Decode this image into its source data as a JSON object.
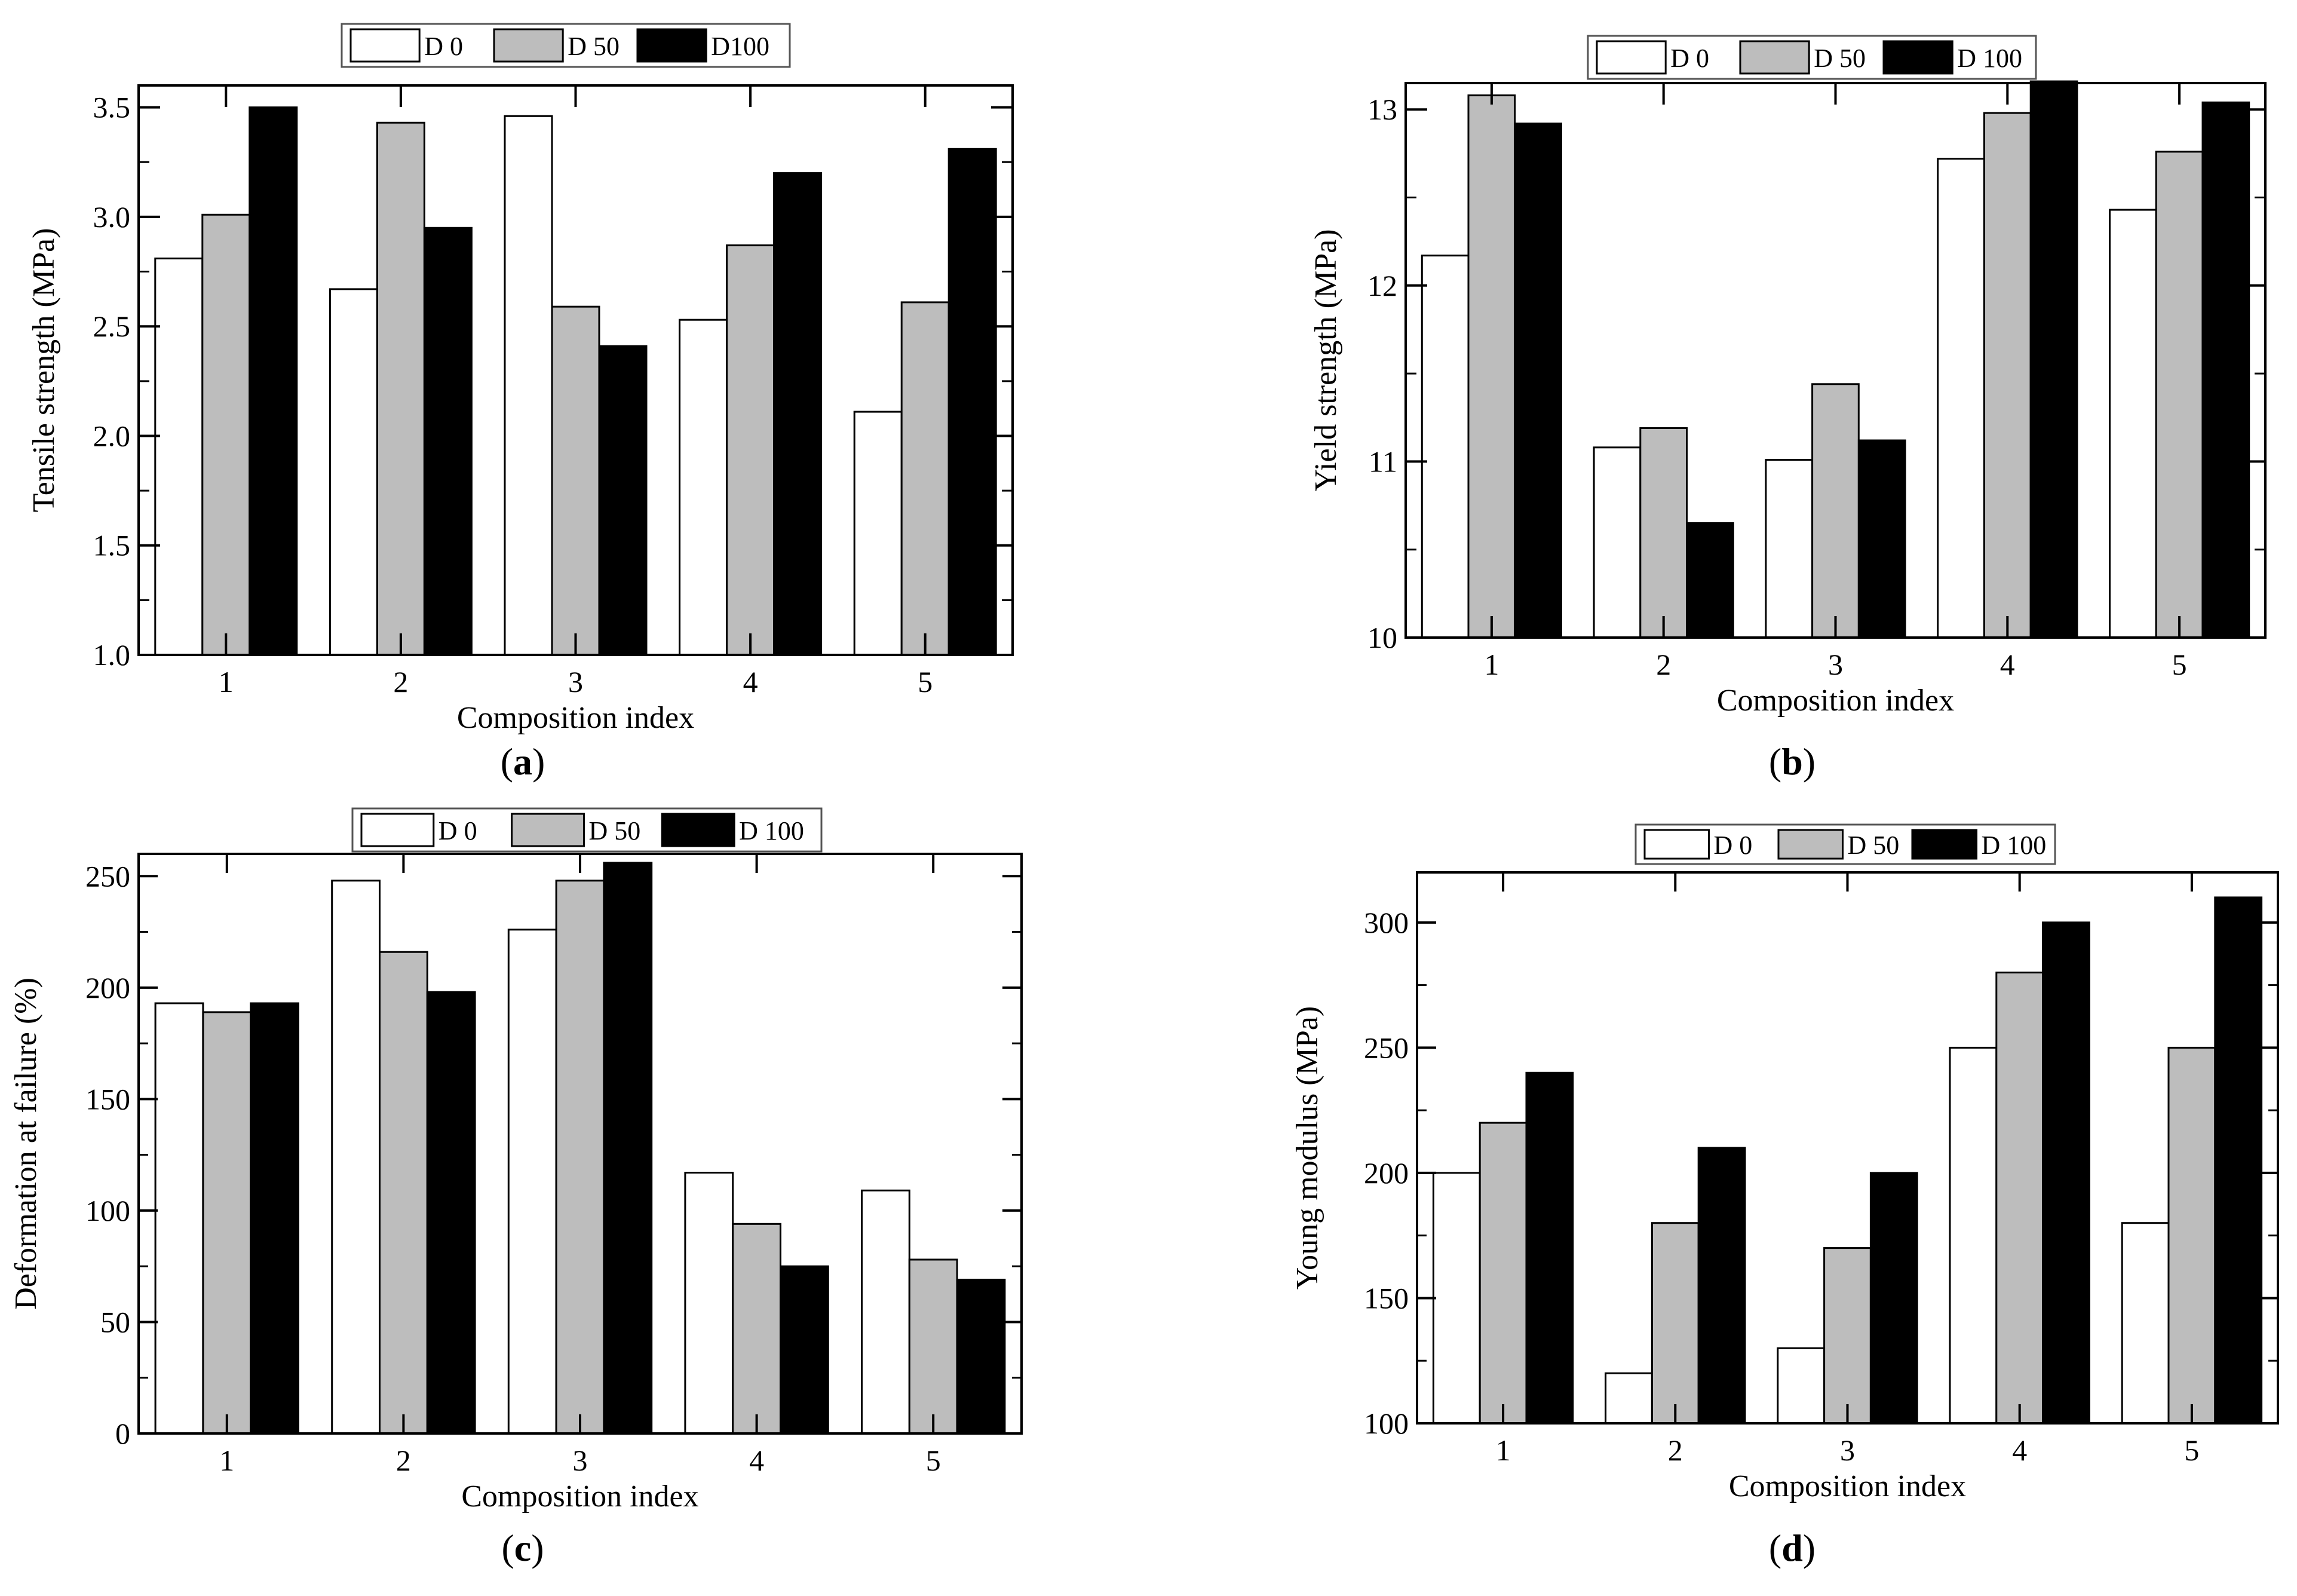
{
  "figure": {
    "panel_labels": [
      "a",
      "b",
      "c",
      "d"
    ]
  },
  "colors": {
    "D0": "#ffffff",
    "D50": "#bdbdbd",
    "D100": "#000000",
    "axis": "#000000"
  },
  "chart_data": [
    {
      "type": "bar",
      "panel": "a",
      "title": "",
      "xlabel": "Composition index",
      "ylabel": "Tensile strength (MPa)",
      "categories": [
        "1",
        "2",
        "3",
        "4",
        "5"
      ],
      "ylim": [
        1.0,
        3.6
      ],
      "yticks": [
        1.0,
        1.5,
        2.0,
        2.5,
        3.0,
        3.5
      ],
      "ytick_labels": [
        "1.0",
        "1.5",
        "2.0",
        "2.5",
        "3.0",
        "3.5"
      ],
      "legend_labels": [
        "D 0",
        "D 50",
        "D100"
      ],
      "legend_position": "top-center, outside",
      "series": [
        {
          "name": "D 0",
          "values": [
            2.81,
            2.67,
            3.46,
            2.53,
            2.11
          ]
        },
        {
          "name": "D 50",
          "values": [
            3.01,
            3.43,
            2.59,
            2.87,
            2.61
          ]
        },
        {
          "name": "D100",
          "values": [
            3.5,
            2.95,
            2.41,
            3.2,
            3.31
          ]
        }
      ]
    },
    {
      "type": "bar",
      "panel": "b",
      "title": "",
      "xlabel": "Composition index",
      "ylabel": "Yield strength (MPa)",
      "categories": [
        "1",
        "2",
        "3",
        "4",
        "5"
      ],
      "ylim": [
        10,
        13.15
      ],
      "yticks": [
        10,
        11,
        12,
        13
      ],
      "ytick_labels": [
        "10",
        "11",
        "12",
        "13"
      ],
      "legend_labels": [
        "D 0",
        "D 50",
        "D 100"
      ],
      "legend_position": "top-center, outside",
      "series": [
        {
          "name": "D 0",
          "values": [
            12.17,
            11.08,
            11.01,
            12.72,
            12.43
          ]
        },
        {
          "name": "D 50",
          "values": [
            13.08,
            11.19,
            11.44,
            12.98,
            12.76
          ]
        },
        {
          "name": "D 100",
          "values": [
            12.92,
            10.65,
            11.12,
            13.16,
            13.04
          ]
        }
      ]
    },
    {
      "type": "bar",
      "panel": "c",
      "title": "",
      "xlabel": "Composition index",
      "ylabel": "Deformation at failure (%)",
      "categories": [
        "1",
        "2",
        "3",
        "4",
        "5"
      ],
      "ylim": [
        0,
        260
      ],
      "yticks": [
        0,
        50,
        100,
        150,
        200,
        250
      ],
      "ytick_labels": [
        "0",
        "50",
        "100",
        "150",
        "200",
        "250"
      ],
      "legend_labels": [
        "D 0",
        "D 50",
        "D 100"
      ],
      "legend_position": "top-center, outside",
      "series": [
        {
          "name": "D 0",
          "values": [
            193,
            248,
            226,
            117,
            109
          ]
        },
        {
          "name": "D 50",
          "values": [
            189,
            216,
            248,
            94,
            78
          ]
        },
        {
          "name": "D 100",
          "values": [
            193,
            198,
            256,
            75,
            69
          ]
        }
      ]
    },
    {
      "type": "bar",
      "panel": "d",
      "title": "",
      "xlabel": "Composition index",
      "ylabel": "Young modulus (MPa)",
      "categories": [
        "1",
        "2",
        "3",
        "4",
        "5"
      ],
      "ylim": [
        100,
        320
      ],
      "yticks": [
        100,
        150,
        200,
        250,
        300
      ],
      "ytick_labels": [
        "100",
        "150",
        "200",
        "250",
        "300"
      ],
      "legend_labels": [
        "D 0",
        "D 50",
        "D 100"
      ],
      "legend_position": "top-center, outside",
      "series": [
        {
          "name": "D 0",
          "values": [
            200,
            120,
            130,
            250,
            180
          ]
        },
        {
          "name": "D 50",
          "values": [
            220,
            180,
            170,
            280,
            250
          ]
        },
        {
          "name": "D 100",
          "values": [
            240,
            210,
            200,
            300,
            310
          ]
        }
      ]
    }
  ]
}
